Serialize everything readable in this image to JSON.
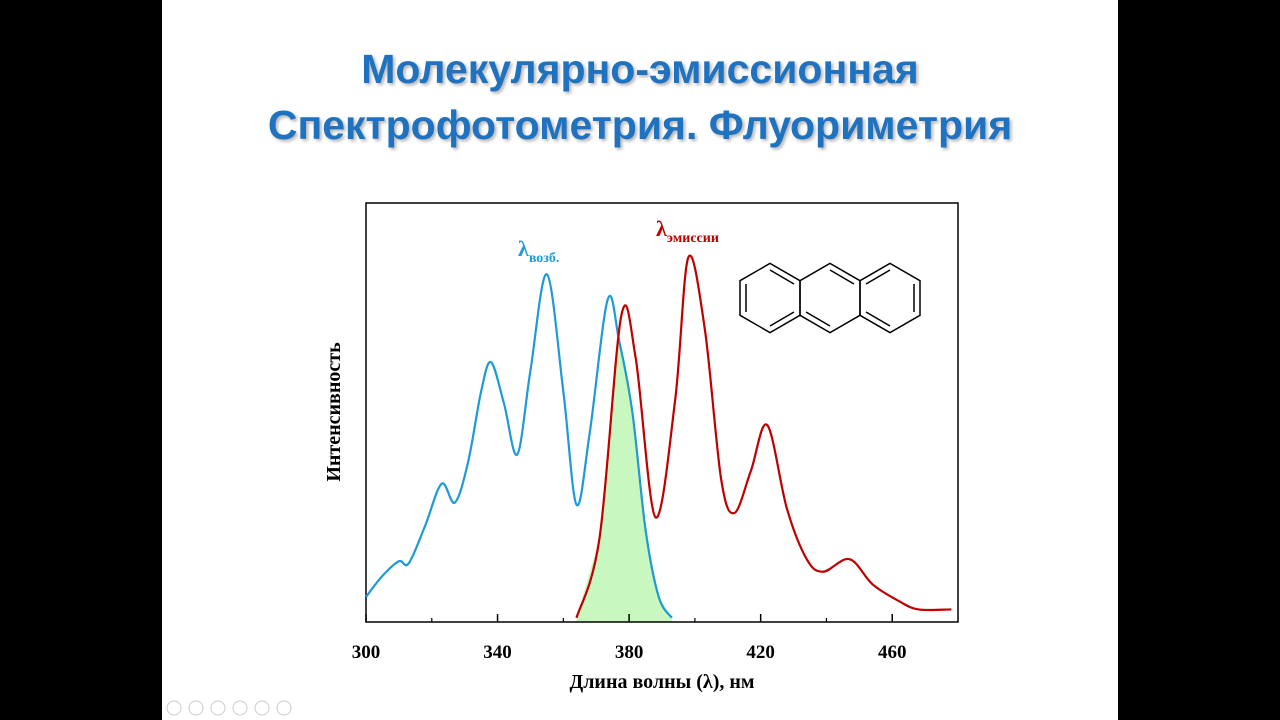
{
  "slide": {
    "title": [
      "Молекулярно-эмиссионная",
      "Спектрофотометрия. Флуориметрия"
    ]
  },
  "chart_data": {
    "type": "line",
    "x_label": "Длина волны (λ), нм",
    "y_label": "Интенсивность",
    "xlim": [
      300,
      480
    ],
    "ylim": [
      0,
      100
    ],
    "xticks": [
      300,
      340,
      380,
      420,
      460
    ],
    "series": [
      {
        "name": "возб.",
        "color": "#1e9ad6",
        "x": [
          300,
          305,
          310,
          313,
          318,
          323,
          327,
          331,
          335,
          338,
          342,
          346,
          350,
          355,
          360,
          364,
          368,
          373.5,
          377,
          381,
          385,
          389,
          393
        ],
        "values": [
          6,
          11,
          14.5,
          14,
          23,
          33,
          28.5,
          38,
          55,
          62,
          52,
          40,
          60,
          83,
          55,
          28,
          45,
          77,
          67,
          50,
          22,
          6,
          1
        ]
      },
      {
        "name": "эмиссии",
        "color": "#c00000",
        "x": [
          364,
          371,
          377.6,
          382,
          388,
          394,
          398,
          403,
          408,
          412,
          417,
          422,
          428,
          434,
          439,
          447,
          454,
          462,
          468,
          478
        ],
        "values": [
          1,
          20,
          73,
          63,
          25,
          53,
          87,
          70,
          34,
          26,
          36,
          47,
          27,
          15,
          12,
          15,
          9,
          5,
          3,
          3
        ]
      }
    ],
    "annotations": [
      {
        "symbol": "λ",
        "subscript": "возб."
      },
      {
        "symbol": "λ",
        "subscript": "эмиссии"
      }
    ],
    "overlap_color": "#c8f7c0"
  }
}
